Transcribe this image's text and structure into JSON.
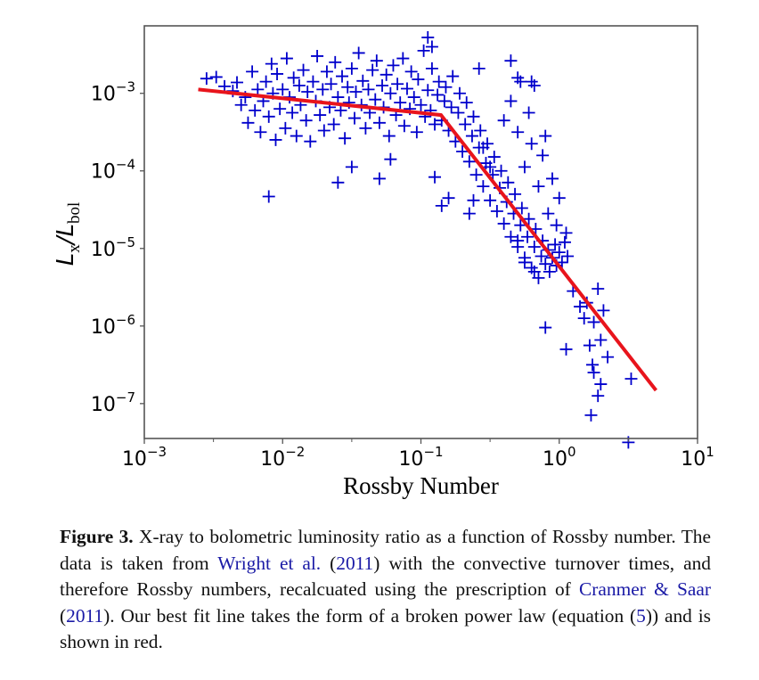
{
  "chart_data": {
    "type": "scatter",
    "title": "",
    "xlabel": "Rossby Number",
    "ylabel_main": "L",
    "ylabel_sub_x": "x",
    "ylabel_sub_bol": "bol",
    "ylabel": "L_x/L_bol",
    "xscale": "log",
    "yscale": "log",
    "xlim_log10": [
      -3,
      1
    ],
    "ylim_log10": [
      -7.45,
      -2.13
    ],
    "grid": false,
    "x_ticks": [
      {
        "exp": "−3",
        "log": -3
      },
      {
        "exp": "−2",
        "log": -2
      },
      {
        "exp": "−1",
        "log": -1
      },
      {
        "exp": "0",
        "log": 0
      },
      {
        "exp": "1",
        "log": 1
      }
    ],
    "y_ticks": [
      {
        "exp": "−3",
        "log": -3
      },
      {
        "exp": "−4",
        "log": -4
      },
      {
        "exp": "−5",
        "log": -5
      },
      {
        "exp": "−6",
        "log": -6
      },
      {
        "exp": "−7",
        "log": -7
      }
    ],
    "tick_base": "10",
    "series": [
      {
        "name": "data",
        "marker": "+",
        "color": "#0000cc",
        "points_log10": [
          [
            -2.55,
            -2.81
          ],
          [
            -2.48,
            -2.79
          ],
          [
            -2.42,
            -2.91
          ],
          [
            -2.36,
            -2.97
          ],
          [
            -2.33,
            -2.86
          ],
          [
            -2.3,
            -3.15
          ],
          [
            -2.27,
            -3.05
          ],
          [
            -2.25,
            -3.38
          ],
          [
            -2.22,
            -2.72
          ],
          [
            -2.2,
            -3.22
          ],
          [
            -2.18,
            -2.95
          ],
          [
            -2.16,
            -3.5
          ],
          [
            -2.14,
            -3.1
          ],
          [
            -2.12,
            -2.85
          ],
          [
            -2.1,
            -3.3
          ],
          [
            -2.08,
            -2.62
          ],
          [
            -2.07,
            -3.0
          ],
          [
            -2.05,
            -3.6
          ],
          [
            -2.04,
            -2.75
          ],
          [
            -2.02,
            -3.2
          ],
          [
            -2.0,
            -2.95
          ],
          [
            -1.98,
            -3.45
          ],
          [
            -1.97,
            -2.55
          ],
          [
            -1.95,
            -3.05
          ],
          [
            -1.93,
            -3.25
          ],
          [
            -1.92,
            -2.8
          ],
          [
            -1.9,
            -3.55
          ],
          [
            -1.88,
            -2.9
          ],
          [
            -1.87,
            -3.15
          ],
          [
            -1.85,
            -2.7
          ],
          [
            -1.83,
            -3.35
          ],
          [
            -1.82,
            -2.98
          ],
          [
            -1.8,
            -3.62
          ],
          [
            -1.78,
            -2.85
          ],
          [
            -1.76,
            -3.1
          ],
          [
            -1.75,
            -2.52
          ],
          [
            -1.73,
            -3.28
          ],
          [
            -1.71,
            -2.95
          ],
          [
            -1.7,
            -3.48
          ],
          [
            -1.68,
            -2.72
          ],
          [
            -1.66,
            -3.18
          ],
          [
            -1.65,
            -2.88
          ],
          [
            -1.63,
            -3.4
          ],
          [
            -1.62,
            -2.6
          ],
          [
            -1.6,
            -3.05
          ],
          [
            -1.58,
            -3.22
          ],
          [
            -1.57,
            -2.78
          ],
          [
            -1.55,
            -3.58
          ],
          [
            -1.53,
            -2.92
          ],
          [
            -1.52,
            -3.12
          ],
          [
            -1.5,
            -2.68
          ],
          [
            -1.48,
            -3.32
          ],
          [
            -1.47,
            -2.98
          ],
          [
            -1.45,
            -2.48
          ],
          [
            -1.43,
            -3.15
          ],
          [
            -1.42,
            -2.84
          ],
          [
            -1.4,
            -3.45
          ],
          [
            -1.38,
            -2.95
          ],
          [
            -1.37,
            -3.25
          ],
          [
            -1.35,
            -2.7
          ],
          [
            -1.33,
            -3.08
          ],
          [
            -1.32,
            -2.58
          ],
          [
            -1.3,
            -3.38
          ],
          [
            -1.28,
            -2.9
          ],
          [
            -1.27,
            -3.18
          ],
          [
            -1.25,
            -2.76
          ],
          [
            -1.23,
            -3.55
          ],
          [
            -1.22,
            -3.0
          ],
          [
            -1.2,
            -2.64
          ],
          [
            -1.18,
            -3.28
          ],
          [
            -1.17,
            -2.88
          ],
          [
            -1.15,
            -3.12
          ],
          [
            -1.13,
            -2.55
          ],
          [
            -1.12,
            -3.42
          ],
          [
            -1.1,
            -2.94
          ],
          [
            -1.08,
            -3.2
          ],
          [
            -1.07,
            -2.72
          ],
          [
            -1.05,
            -3.05
          ],
          [
            -1.03,
            -3.5
          ],
          [
            -1.02,
            -2.82
          ],
          [
            -1.0,
            -3.15
          ],
          [
            -0.98,
            -2.45
          ],
          [
            -0.97,
            -3.3
          ],
          [
            -0.95,
            -2.96
          ],
          [
            -0.93,
            -3.22
          ],
          [
            -0.92,
            -2.68
          ],
          [
            -0.9,
            -3.4
          ],
          [
            -0.88,
            -3.02
          ],
          [
            -0.87,
            -2.85
          ],
          [
            -0.85,
            -3.35
          ],
          [
            -0.83,
            -3.1
          ],
          [
            -0.82,
            -2.92
          ],
          [
            -0.8,
            -3.48
          ],
          [
            -0.78,
            -3.18
          ],
          [
            -0.77,
            -2.78
          ],
          [
            -0.75,
            -3.62
          ],
          [
            -0.73,
            -3.25
          ],
          [
            -0.72,
            -3.0
          ],
          [
            -0.7,
            -3.75
          ],
          [
            -0.68,
            -3.4
          ],
          [
            -0.67,
            -3.12
          ],
          [
            -0.65,
            -3.88
          ],
          [
            -0.63,
            -3.55
          ],
          [
            -0.62,
            -3.3
          ],
          [
            -0.6,
            -4.05
          ],
          [
            -0.58,
            -3.7
          ],
          [
            -0.57,
            -3.48
          ],
          [
            -0.55,
            -4.2
          ],
          [
            -0.53,
            -3.9
          ],
          [
            -0.52,
            -3.65
          ],
          [
            -0.5,
            -4.38
          ],
          [
            -0.48,
            -4.05
          ],
          [
            -0.47,
            -3.82
          ],
          [
            -0.45,
            -4.52
          ],
          [
            -0.43,
            -4.22
          ],
          [
            -0.42,
            -4.0
          ],
          [
            -0.4,
            -4.68
          ],
          [
            -0.38,
            -4.4
          ],
          [
            -0.37,
            -4.15
          ],
          [
            -0.35,
            -4.85
          ],
          [
            -0.33,
            -4.55
          ],
          [
            -0.32,
            -4.3
          ],
          [
            -0.3,
            -4.98
          ],
          [
            -0.28,
            -4.7
          ],
          [
            -0.27,
            -4.48
          ],
          [
            -0.25,
            -5.12
          ],
          [
            -0.23,
            -4.85
          ],
          [
            -0.22,
            -4.62
          ],
          [
            -0.2,
            -5.25
          ],
          [
            -0.18,
            -4.98
          ],
          [
            -0.17,
            -4.75
          ],
          [
            -0.15,
            -5.38
          ],
          [
            -0.13,
            -5.1
          ],
          [
            -0.12,
            -4.9
          ],
          [
            -0.1,
            -5.2
          ],
          [
            -0.08,
            -5.02
          ],
          [
            -0.07,
            -5.3
          ],
          [
            -0.05,
            -5.12
          ],
          [
            -0.03,
            -4.95
          ],
          [
            -0.02,
            -5.22
          ],
          [
            0.0,
            -5.05
          ],
          [
            0.02,
            -5.18
          ],
          [
            0.04,
            -4.92
          ],
          [
            0.06,
            -5.1
          ],
          [
            -0.25,
            -3.95
          ],
          [
            -0.2,
            -3.65
          ],
          [
            -0.15,
            -4.2
          ],
          [
            -0.1,
            -3.55
          ],
          [
            -0.05,
            -4.1
          ],
          [
            0.0,
            -4.35
          ],
          [
            -0.4,
            -3.35
          ],
          [
            -0.35,
            -3.1
          ],
          [
            -0.3,
            -3.5
          ],
          [
            -0.28,
            -2.85
          ],
          [
            -0.22,
            -3.25
          ],
          [
            -0.18,
            -2.9
          ],
          [
            -0.12,
            -3.8
          ],
          [
            -0.08,
            -4.55
          ],
          [
            -0.02,
            -4.7
          ],
          [
            0.05,
            -4.8
          ],
          [
            -0.58,
            -2.68
          ],
          [
            -0.35,
            -2.58
          ],
          [
            -0.3,
            -2.8
          ],
          [
            -0.2,
            -2.85
          ],
          [
            -0.92,
            -2.4
          ],
          [
            -0.95,
            -2.28
          ],
          [
            -0.55,
            -3.7
          ],
          [
            -0.5,
            -3.95
          ],
          [
            -0.62,
            -4.38
          ],
          [
            -0.65,
            -4.55
          ],
          [
            -0.8,
            -4.35
          ],
          [
            -0.85,
            -4.45
          ],
          [
            -0.3,
            -4.9
          ],
          [
            -0.25,
            -5.18
          ],
          [
            -0.18,
            -5.3
          ],
          [
            0.1,
            -5.55
          ],
          [
            0.15,
            -5.75
          ],
          [
            0.2,
            -5.7
          ],
          [
            0.28,
            -5.52
          ],
          [
            0.32,
            -5.8
          ],
          [
            0.18,
            -5.9
          ],
          [
            0.25,
            -5.95
          ],
          [
            0.22,
            -6.25
          ],
          [
            0.3,
            -6.18
          ],
          [
            0.35,
            -6.4
          ],
          [
            0.24,
            -6.5
          ],
          [
            0.25,
            -6.6
          ],
          [
            0.3,
            -6.75
          ],
          [
            0.28,
            -6.9
          ],
          [
            0.52,
            -6.68
          ],
          [
            0.23,
            -7.15
          ],
          [
            0.5,
            -7.5
          ],
          [
            -0.1,
            -6.02
          ],
          [
            0.05,
            -6.3
          ],
          [
            -2.1,
            -4.33
          ],
          [
            -1.6,
            -4.15
          ],
          [
            -1.5,
            -3.95
          ],
          [
            -1.3,
            -4.1
          ],
          [
            -1.22,
            -3.85
          ],
          [
            -0.9,
            -4.08
          ]
        ]
      },
      {
        "name": "best fit (broken power law)",
        "type": "line",
        "color": "#e8141c",
        "points_log10": [
          [
            -2.61,
            -2.95
          ],
          [
            -0.855,
            -3.28
          ],
          [
            0.7,
            -6.83
          ]
        ]
      }
    ]
  },
  "caption": {
    "label": "Figure 3.",
    "segments": [
      {
        "text": " X-ray to bolometric luminosity ratio as a function of Rossby number. The data is taken from ",
        "link": false
      },
      {
        "text": "Wright et al.",
        "link": true
      },
      {
        "text": " (",
        "link": false
      },
      {
        "text": "2011",
        "link": true
      },
      {
        "text": ") with the convective turnover times, and therefore Rossby numbers, recalcuated using the prescription of ",
        "link": false
      },
      {
        "text": "Cranmer & Saar",
        "link": true
      },
      {
        "text": " (",
        "link": false
      },
      {
        "text": "2011",
        "link": true
      },
      {
        "text": "). Our best fit line takes the form of a broken power law (equation (",
        "link": false
      },
      {
        "text": "5",
        "link": true
      },
      {
        "text": ")) and is shown in red.",
        "link": false
      }
    ]
  }
}
